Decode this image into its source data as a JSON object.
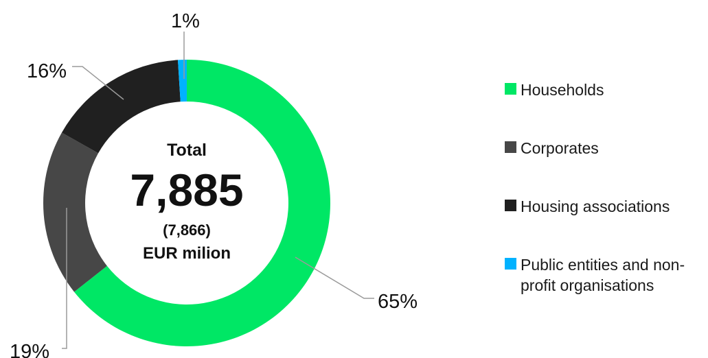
{
  "chart_data": {
    "type": "pie",
    "style": "donut",
    "center": {
      "title": "Total",
      "value": "7,885",
      "previous": "(7,866)",
      "unit": "EUR milion"
    },
    "slices": [
      {
        "label": "Households",
        "value": 65,
        "value_label": "65%",
        "color": "#00e765"
      },
      {
        "label": "Corporates",
        "value": 19,
        "value_label": "19%",
        "color": "#474747"
      },
      {
        "label": "Housing associations",
        "value": 16,
        "value_label": "16%",
        "color": "#202020"
      },
      {
        "label": "Public entities and non-profit organisations",
        "value": 1,
        "value_label": "1%",
        "color": "#00b2ff"
      }
    ],
    "legend_position": "right"
  }
}
